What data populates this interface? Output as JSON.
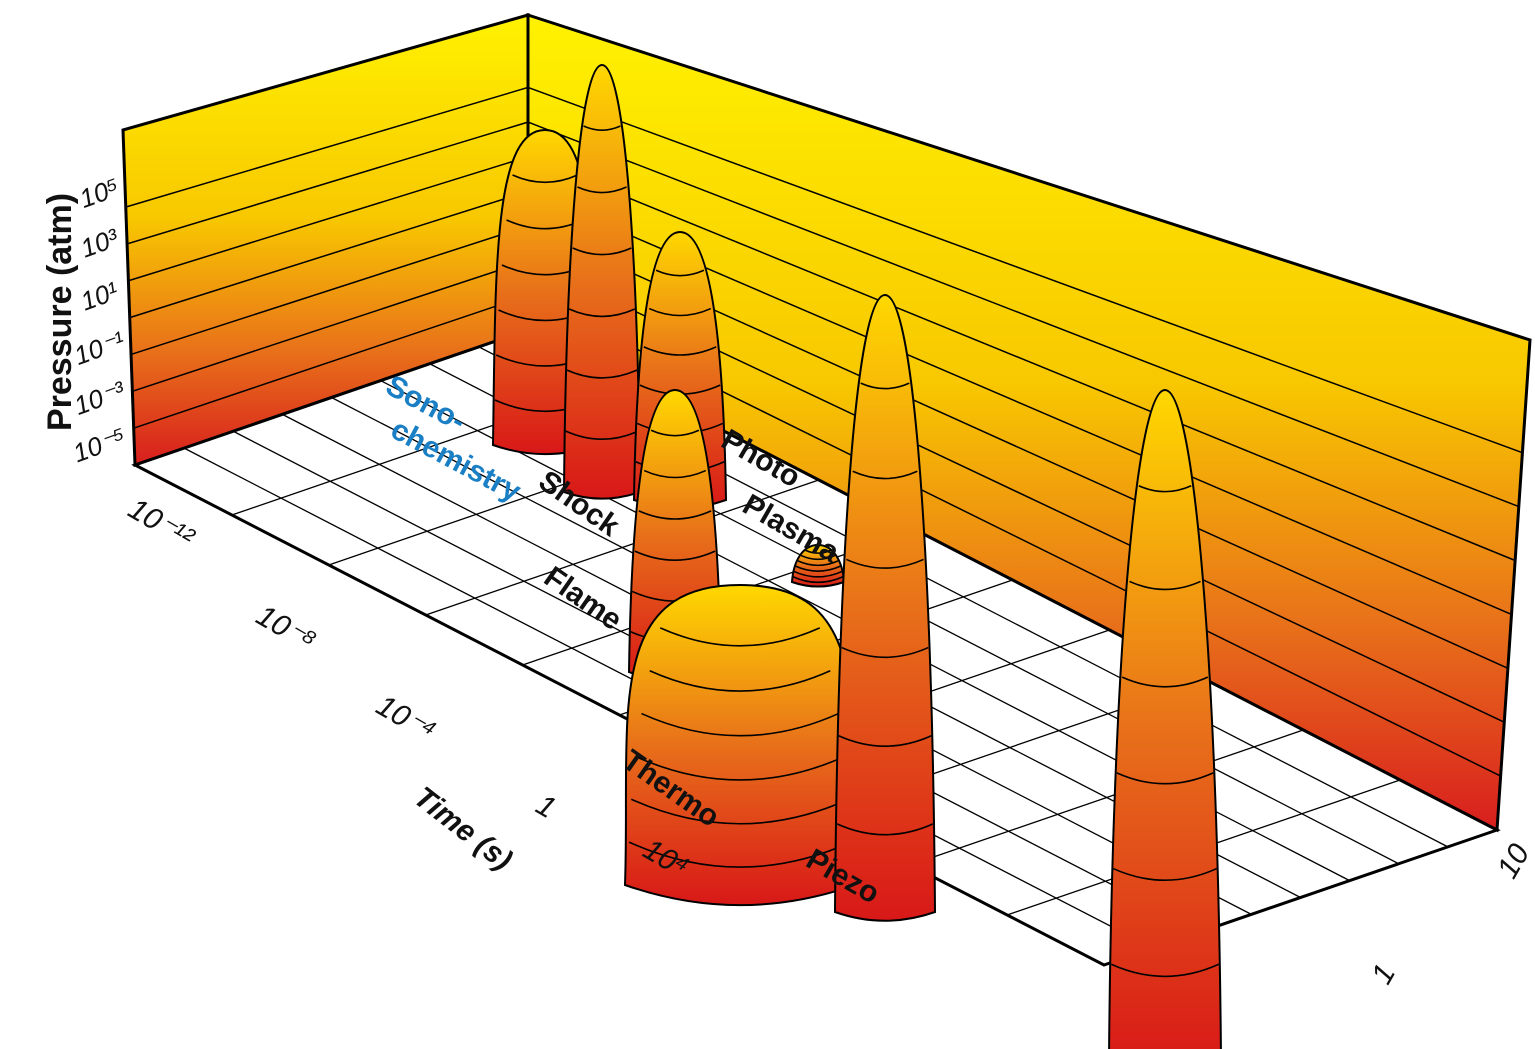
{
  "axes": {
    "pressure": {
      "label": "Pressure (atm)",
      "ticks": [
        "10⁵",
        "10³",
        "10¹",
        "10⁻¹",
        "10⁻³",
        "10⁻⁵"
      ]
    },
    "time": {
      "label": "Time (s)",
      "ticks": [
        "10⁻¹²",
        "10⁻⁸",
        "10⁻⁴",
        "1",
        "10⁴"
      ]
    },
    "energy": {
      "ticks": [
        "10",
        "1"
      ]
    }
  },
  "regions": [
    {
      "label": "Sono-"
    },
    {
      "label": "chemistry"
    },
    {
      "label": "Shock"
    },
    {
      "label": "Photo"
    },
    {
      "label": "Plasma"
    },
    {
      "label": "Flame"
    },
    {
      "label": "Thermo"
    },
    {
      "label": "Piezo"
    }
  ]
}
